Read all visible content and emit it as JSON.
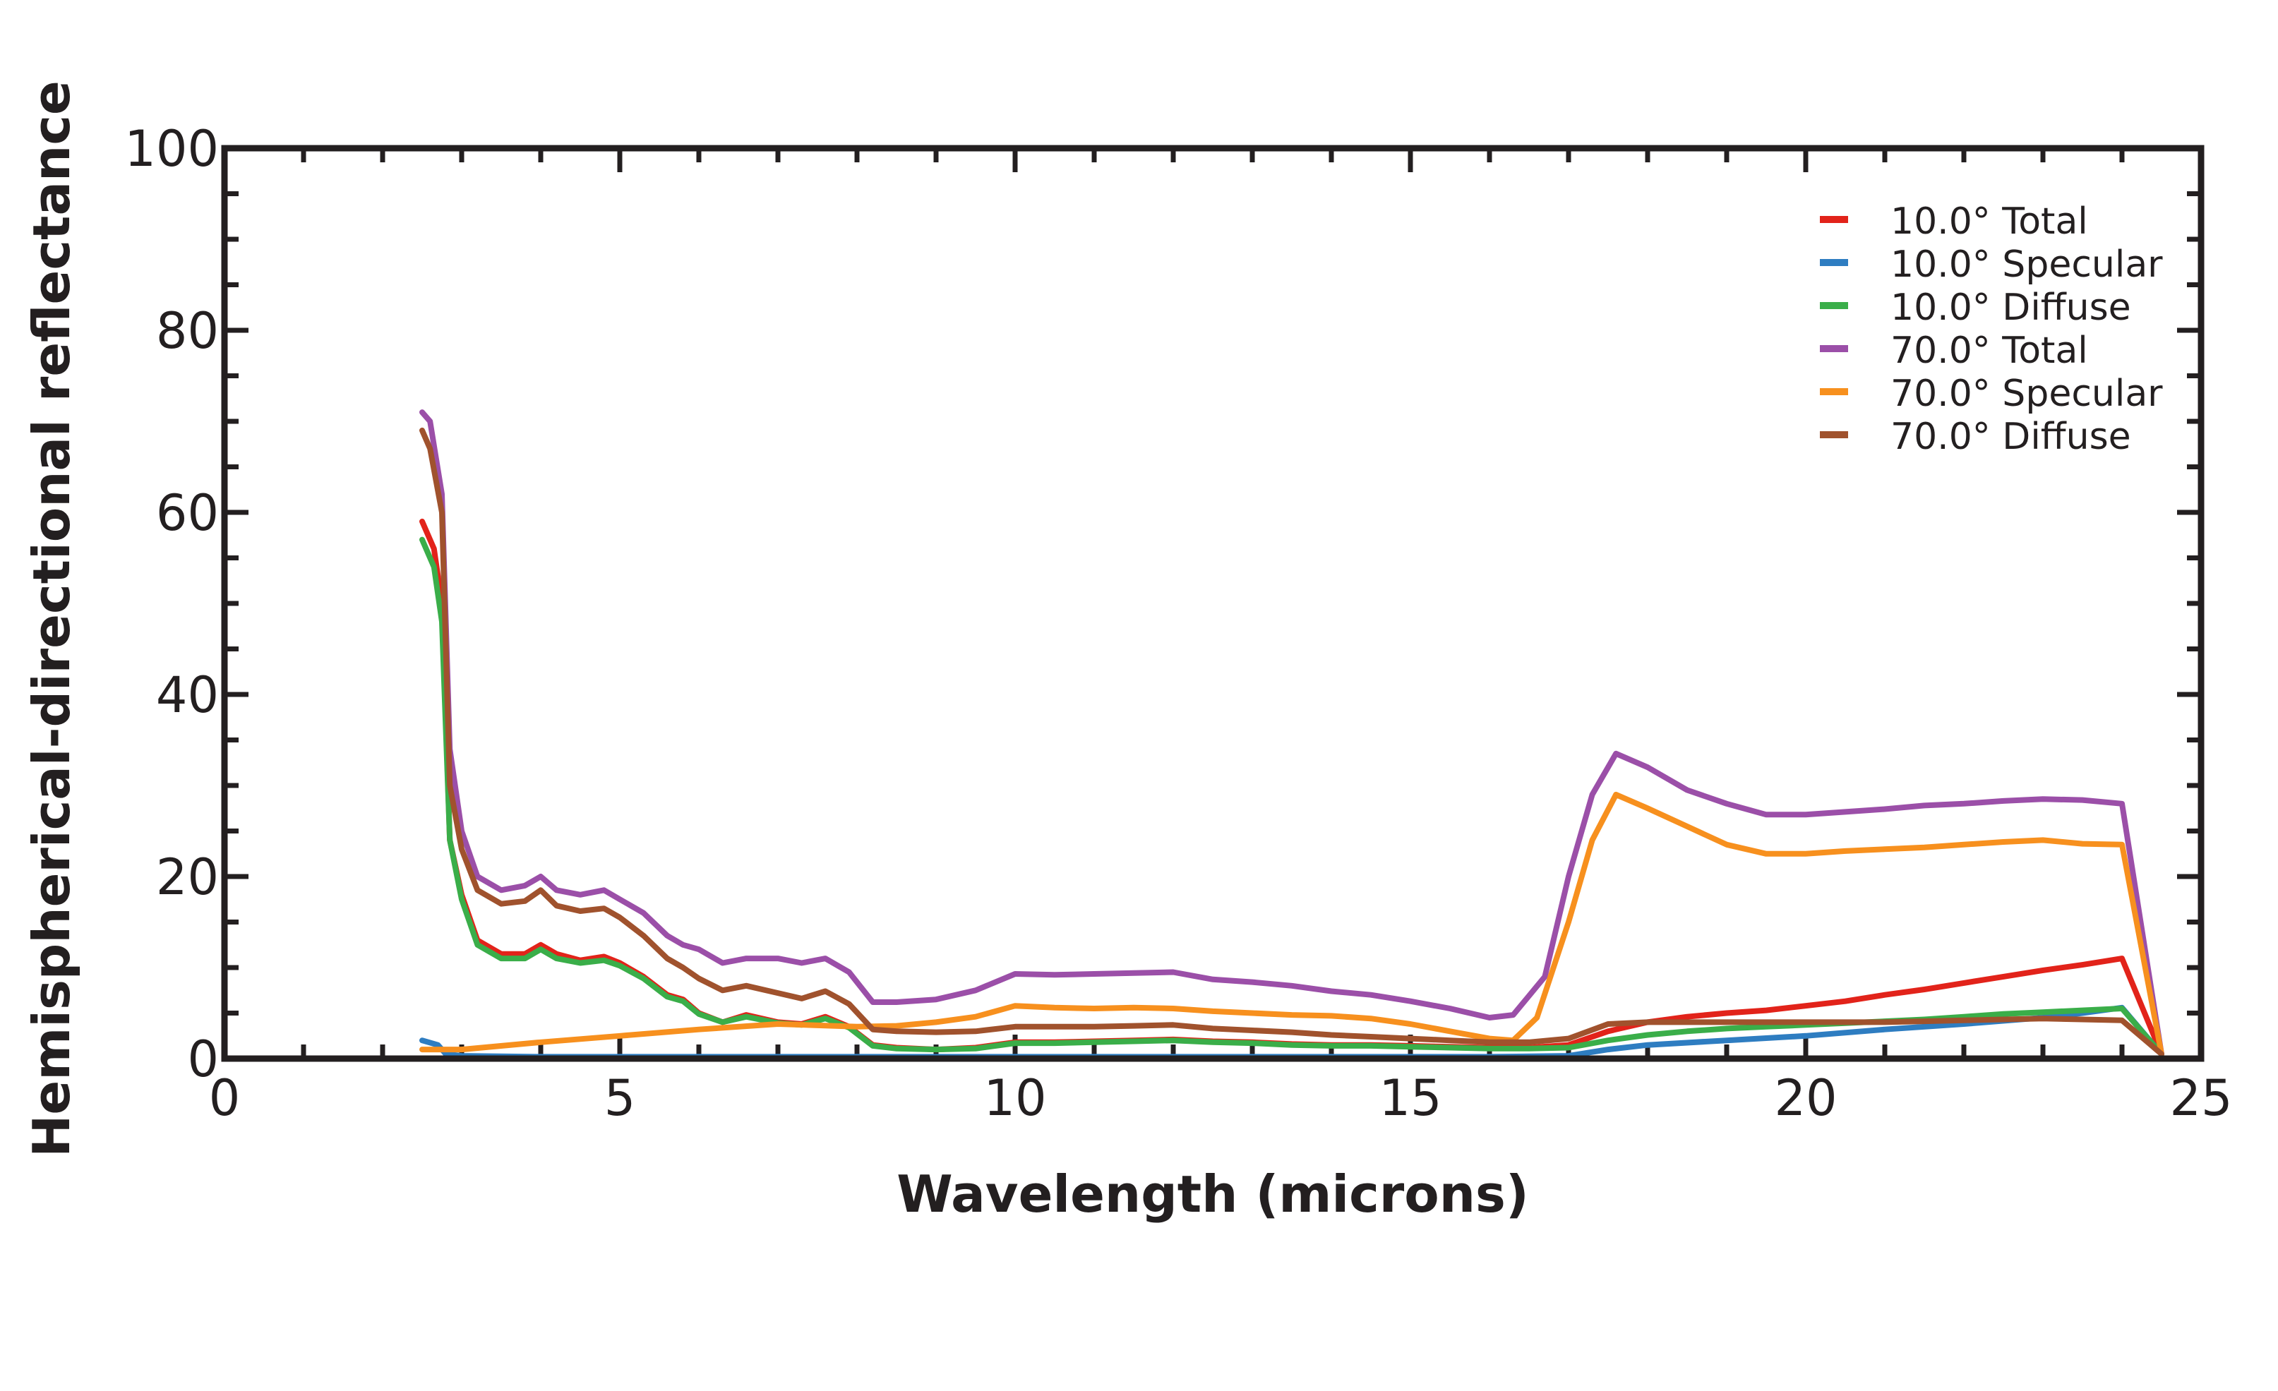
{
  "chart_data": {
    "type": "line",
    "title": "",
    "xlabel": "Wavelength (microns)",
    "ylabel": "Hemispherical-directional reflectance",
    "xlim": [
      0,
      25
    ],
    "ylim": [
      0,
      100
    ],
    "xticks": [
      0,
      5,
      10,
      15,
      20,
      25
    ],
    "yticks": [
      0,
      20,
      40,
      60,
      80,
      100
    ],
    "legend_position": "top-right",
    "series": [
      {
        "name": "10.0° Total",
        "color": "#e2231a",
        "x": [
          2.5,
          2.65,
          2.75,
          2.85,
          3.0,
          3.2,
          3.5,
          3.8,
          4.0,
          4.2,
          4.5,
          4.8,
          5.0,
          5.3,
          5.6,
          5.8,
          6.0,
          6.3,
          6.6,
          7.0,
          7.3,
          7.6,
          7.9,
          8.2,
          8.5,
          9.0,
          9.5,
          10.0,
          10.5,
          11.0,
          11.5,
          12.0,
          12.5,
          13.0,
          13.5,
          14.0,
          14.5,
          15.0,
          15.5,
          16.0,
          16.5,
          17.0,
          17.5,
          18.0,
          18.5,
          19.0,
          19.5,
          20.0,
          20.5,
          21.0,
          21.5,
          22.0,
          22.5,
          23.0,
          23.5,
          24.0,
          24.5
        ],
        "y": [
          59,
          56,
          50,
          24,
          18,
          13,
          11.5,
          11.5,
          12.5,
          11.5,
          10.8,
          11.2,
          10.5,
          9,
          7,
          6.5,
          5,
          4,
          4.8,
          4,
          3.8,
          4.6,
          3.5,
          1.5,
          1.2,
          1.0,
          1.2,
          1.8,
          1.8,
          1.9,
          2.0,
          2.1,
          1.9,
          1.8,
          1.6,
          1.5,
          1.5,
          1.4,
          1.3,
          1.2,
          1.2,
          1.5,
          3.0,
          4.0,
          4.6,
          5.0,
          5.3,
          5.8,
          6.3,
          7.0,
          7.6,
          8.3,
          9.0,
          9.7,
          10.3,
          11.0,
          0.5
        ]
      },
      {
        "name": "10.0° Specular",
        "color": "#2e7dc1",
        "x": [
          2.5,
          2.7,
          2.8,
          3.0,
          4.0,
          6.0,
          8.0,
          10.0,
          12.0,
          14.0,
          16.0,
          17.0,
          17.5,
          18.0,
          19.0,
          20.0,
          21.0,
          22.0,
          23.0,
          23.5,
          24.0,
          24.5
        ],
        "y": [
          2.0,
          1.5,
          0.5,
          0.3,
          0.2,
          0.2,
          0.2,
          0.2,
          0.2,
          0.2,
          0.2,
          0.3,
          1.0,
          1.5,
          2.0,
          2.5,
          3.2,
          3.8,
          4.5,
          5.0,
          5.6,
          0.5
        ]
      },
      {
        "name": "10.0° Diffuse",
        "color": "#3aae49",
        "x": [
          2.5,
          2.65,
          2.75,
          2.85,
          3.0,
          3.2,
          3.5,
          3.8,
          4.0,
          4.2,
          4.5,
          4.8,
          5.0,
          5.3,
          5.6,
          5.8,
          6.0,
          6.3,
          6.6,
          7.0,
          7.3,
          7.6,
          7.9,
          8.2,
          8.5,
          9.0,
          9.5,
          10.0,
          10.5,
          11.0,
          11.5,
          12.0,
          12.5,
          13.0,
          13.5,
          14.0,
          14.5,
          15.0,
          15.5,
          16.0,
          16.5,
          17.0,
          17.5,
          18.0,
          18.5,
          19.0,
          19.5,
          20.0,
          20.5,
          21.0,
          21.5,
          22.0,
          22.5,
          23.0,
          23.5,
          24.0,
          24.5
        ],
        "y": [
          57,
          54,
          48,
          24,
          17.5,
          12.5,
          11,
          11,
          12,
          11,
          10.5,
          10.8,
          10.2,
          8.8,
          6.8,
          6.3,
          4.9,
          4,
          4.6,
          3.9,
          3.7,
          4.4,
          3.4,
          1.4,
          1.1,
          1.0,
          1.1,
          1.7,
          1.7,
          1.8,
          1.9,
          2.0,
          1.8,
          1.7,
          1.5,
          1.4,
          1.4,
          1.3,
          1.2,
          1.1,
          1.1,
          1.2,
          2.0,
          2.6,
          3.0,
          3.3,
          3.5,
          3.7,
          3.9,
          4.1,
          4.3,
          4.6,
          4.9,
          5.1,
          5.3,
          5.5,
          0.5
        ]
      },
      {
        "name": "70.0° Total",
        "color": "#9b4fa8",
        "x": [
          2.5,
          2.6,
          2.75,
          2.85,
          3.0,
          3.2,
          3.5,
          3.8,
          4.0,
          4.2,
          4.5,
          4.8,
          5.0,
          5.3,
          5.6,
          5.8,
          6.0,
          6.3,
          6.6,
          7.0,
          7.3,
          7.6,
          7.9,
          8.2,
          8.5,
          9.0,
          9.5,
          10.0,
          10.5,
          11.0,
          11.5,
          12.0,
          12.5,
          13.0,
          13.5,
          14.0,
          14.5,
          15.0,
          15.5,
          16.0,
          16.3,
          16.7,
          17.0,
          17.3,
          17.6,
          18.0,
          18.5,
          19.0,
          19.5,
          20.0,
          20.5,
          21.0,
          21.5,
          22.0,
          22.5,
          23.0,
          23.5,
          24.0,
          24.5
        ],
        "y": [
          71,
          70,
          62,
          34,
          25,
          20,
          18.5,
          19,
          20,
          18.5,
          18,
          18.5,
          17.5,
          16,
          13.5,
          12.5,
          12,
          10.5,
          11,
          11,
          10.5,
          11,
          9.5,
          6.2,
          6.2,
          6.5,
          7.5,
          9.3,
          9.2,
          9.3,
          9.4,
          9.5,
          8.7,
          8.4,
          8.0,
          7.4,
          7.0,
          6.3,
          5.5,
          4.5,
          4.8,
          9,
          20,
          29,
          33.5,
          32,
          29.5,
          28,
          26.8,
          26.8,
          27.1,
          27.4,
          27.8,
          28.0,
          28.3,
          28.5,
          28.4,
          28.0,
          0.5
        ]
      },
      {
        "name": "70.0° Specular",
        "color": "#f7901e",
        "x": [
          2.5,
          3.0,
          4.0,
          5.0,
          6.0,
          7.0,
          8.0,
          8.5,
          9.0,
          9.5,
          10.0,
          10.5,
          11.0,
          11.5,
          12.0,
          12.5,
          13.0,
          13.5,
          14.0,
          14.5,
          15.0,
          15.5,
          16.0,
          16.3,
          16.6,
          17.0,
          17.3,
          17.6,
          18.0,
          18.5,
          19.0,
          19.5,
          20.0,
          20.5,
          21.0,
          21.5,
          22.0,
          22.5,
          23.0,
          23.5,
          24.0,
          24.5
        ],
        "y": [
          1.0,
          1.0,
          1.8,
          2.5,
          3.2,
          3.8,
          3.5,
          3.6,
          4.0,
          4.6,
          5.8,
          5.6,
          5.5,
          5.6,
          5.5,
          5.2,
          5.0,
          4.8,
          4.7,
          4.4,
          3.8,
          3.0,
          2.2,
          2.0,
          4.5,
          15,
          24,
          29,
          27.5,
          25.5,
          23.5,
          22.5,
          22.5,
          22.8,
          23.0,
          23.2,
          23.5,
          23.8,
          24.0,
          23.6,
          23.5,
          0.5
        ]
      },
      {
        "name": "70.0° Diffuse",
        "color": "#a0522d",
        "x": [
          2.5,
          2.6,
          2.75,
          2.85,
          3.0,
          3.2,
          3.5,
          3.8,
          4.0,
          4.2,
          4.5,
          4.8,
          5.0,
          5.3,
          5.6,
          5.8,
          6.0,
          6.3,
          6.6,
          7.0,
          7.3,
          7.6,
          7.9,
          8.2,
          8.5,
          9.0,
          9.5,
          10.0,
          10.5,
          11.0,
          11.5,
          12.0,
          12.5,
          13.0,
          13.5,
          14.0,
          14.5,
          15.0,
          15.5,
          16.0,
          16.5,
          17.0,
          17.5,
          18.0,
          18.5,
          19.0,
          19.5,
          20.0,
          20.5,
          21.0,
          21.5,
          22.0,
          22.5,
          23.0,
          23.5,
          24.0,
          24.5
        ],
        "y": [
          69,
          67,
          60,
          30,
          23,
          18.5,
          17,
          17.3,
          18.5,
          16.8,
          16.2,
          16.5,
          15.5,
          13.5,
          11,
          10,
          8.8,
          7.5,
          8.0,
          7.2,
          6.6,
          7.4,
          6.0,
          3.2,
          3.0,
          2.9,
          3.0,
          3.5,
          3.5,
          3.5,
          3.6,
          3.7,
          3.3,
          3.1,
          2.9,
          2.6,
          2.4,
          2.2,
          2.0,
          1.8,
          1.8,
          2.2,
          3.8,
          4.0,
          4.0,
          4.0,
          4.0,
          4.0,
          4.0,
          4.0,
          4.1,
          4.2,
          4.3,
          4.4,
          4.3,
          4.2,
          0.5
        ]
      }
    ]
  }
}
